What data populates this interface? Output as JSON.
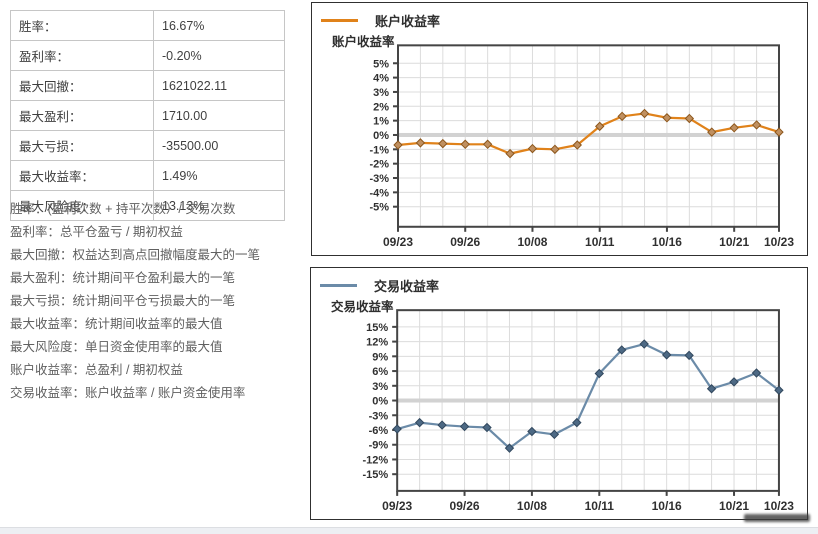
{
  "stats_table": {
    "rows": [
      {
        "label": "胜率：",
        "value": "16.67%"
      },
      {
        "label": "盈利率：",
        "value": "-0.20%"
      },
      {
        "label": "最大回撤：",
        "value": "1621022.11"
      },
      {
        "label": "最大盈利：",
        "value": "1710.00"
      },
      {
        "label": "最大亏损：",
        "value": "-35500.00"
      },
      {
        "label": "最大收益率：",
        "value": "1.49%"
      },
      {
        "label": "最大风险度：",
        "value": "13.13%"
      }
    ]
  },
  "definitions": [
    "胜率：(盈利次数 + 持平次数）/ 交易次数",
    "盈利率：总平仓盈亏 / 期初权益",
    "最大回撤：权益达到高点回撤幅度最大的一笔",
    "最大盈利：统计期间平仓盈利最大的一笔",
    "最大亏损：统计期间平仓亏损最大的一笔",
    "最大收益率：统计期间收益率的最大值",
    "最大风险度：单日资金使用率的最大值",
    "账户收益率：总盈利 / 期初权益",
    "交易收益率：账户收益率 / 账户资金使用率"
  ],
  "chart_data": [
    {
      "type": "line",
      "axis_title": "账户收益率",
      "series": [
        {
          "name": "账户收益率",
          "values": [
            -0.7,
            -0.55,
            -0.6,
            -0.65,
            -0.65,
            -1.3,
            -0.95,
            -1.0,
            -0.7,
            0.6,
            1.3,
            1.5,
            1.2,
            1.15,
            0.2,
            0.5,
            0.7,
            0.2
          ],
          "color": "#e0821a",
          "marker_fill": "#c09060",
          "marker_stroke": "#8d571c"
        }
      ],
      "x_tick_labels": [
        "09/23",
        "09/26",
        "10/08",
        "10/11",
        "10/16",
        "10/21",
        "10/23"
      ],
      "x_tick_indices": [
        0,
        3,
        6,
        9,
        12,
        15,
        17
      ],
      "y_ticks": [
        5,
        4,
        3,
        2,
        1,
        0,
        -1,
        -2,
        -3,
        -4,
        -5
      ],
      "y_tick_suffix": "%",
      "ylim": [
        -6.4,
        6.25
      ],
      "grid": true,
      "zero_band": true,
      "legend_position": "top-left"
    },
    {
      "type": "line",
      "axis_title": "交易收益率",
      "series": [
        {
          "name": "交易收益率",
          "values": [
            -5.8,
            -4.5,
            -5.0,
            -5.3,
            -5.5,
            -9.7,
            -6.3,
            -6.9,
            -4.5,
            5.5,
            10.3,
            11.5,
            9.3,
            9.2,
            2.4,
            3.8,
            5.6,
            2.1
          ],
          "color": "#6b8ba8",
          "marker_fill": "#4d6984",
          "marker_stroke": "#32485e"
        }
      ],
      "x_tick_labels": [
        "09/23",
        "09/26",
        "10/08",
        "10/11",
        "10/16",
        "10/21",
        "10/23"
      ],
      "x_tick_indices": [
        0,
        3,
        6,
        9,
        12,
        15,
        17
      ],
      "y_ticks": [
        15,
        12,
        9,
        6,
        3,
        0,
        -3,
        -6,
        -9,
        -12,
        -15
      ],
      "y_tick_suffix": "%",
      "ylim": [
        -18.4,
        18.4
      ],
      "grid": true,
      "zero_band": true,
      "legend_position": "top-left"
    }
  ]
}
